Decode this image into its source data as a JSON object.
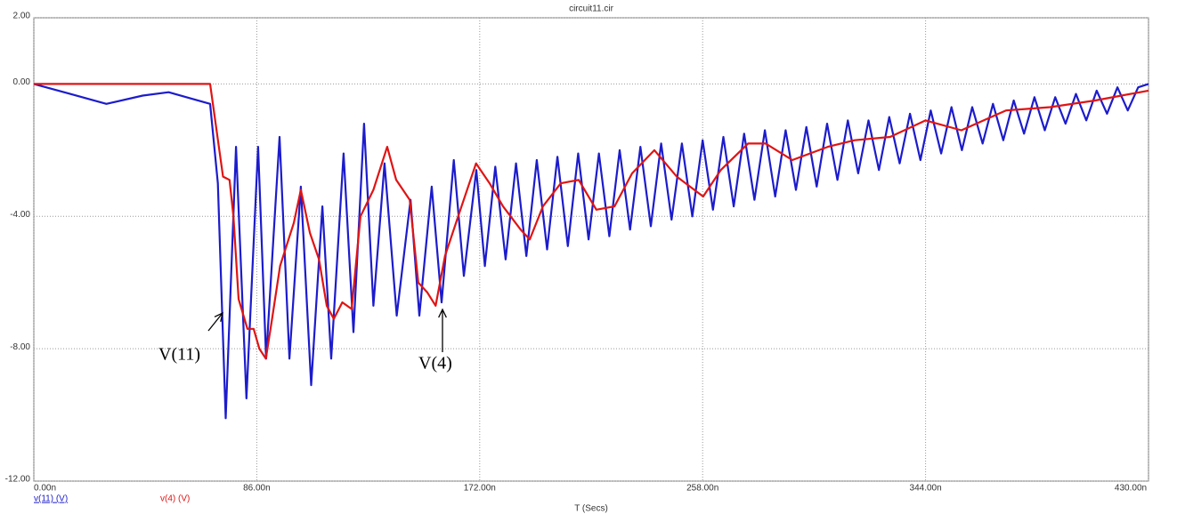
{
  "chart_data": {
    "type": "line",
    "title": "circuit11.cir",
    "x_label": "T (Secs)",
    "xlim": [
      0,
      430
    ],
    "ylim": [
      -12,
      2
    ],
    "xticks": [
      {
        "value": 0,
        "label": "0.00n"
      },
      {
        "value": 86,
        "label": "86.00n"
      },
      {
        "value": 172,
        "label": "172.00n"
      },
      {
        "value": 258,
        "label": "258.00n"
      },
      {
        "value": 344,
        "label": "344.00n"
      },
      {
        "value": 430,
        "label": "430.00n"
      }
    ],
    "yticks": [
      {
        "value": -12,
        "label": "-12.00"
      },
      {
        "value": -8,
        "label": "-8.00"
      },
      {
        "value": -4,
        "label": "-4.00"
      },
      {
        "value": 0,
        "label": "0.00"
      },
      {
        "value": 2,
        "label": "2.00"
      }
    ],
    "grid": true,
    "annotations": [
      {
        "text": "V(11)"
      },
      {
        "text": "V(4)"
      }
    ],
    "series": [
      {
        "name": "v(11) (V)",
        "color": "#1c1ccc",
        "x": [
          0,
          14,
          28,
          42,
          52,
          68,
          71,
          74,
          78,
          82,
          86.5,
          89.6,
          94.8,
          98.6,
          103,
          107,
          111.3,
          114.7,
          119.5,
          123.3,
          127.4,
          131,
          135.3,
          140,
          145.3,
          148.7,
          153.5,
          157.3,
          162,
          165.9,
          170.7,
          174,
          178,
          182,
          186,
          190,
          194,
          198,
          202,
          206,
          210,
          214,
          218,
          222,
          226,
          230,
          234,
          238,
          242,
          246,
          250,
          254,
          258,
          262,
          266,
          270,
          274,
          278,
          282,
          286,
          290,
          294,
          298,
          302,
          306,
          310,
          314,
          318,
          322,
          326,
          330,
          334,
          338,
          342,
          346,
          350,
          354,
          358,
          362,
          366,
          370,
          374,
          378,
          382,
          386,
          390,
          394,
          398,
          402,
          406,
          410,
          414,
          418,
          422,
          426,
          430
        ],
        "values": [
          0,
          -0.3,
          -0.6,
          -0.35,
          -0.25,
          -0.6,
          -3,
          -10.1,
          -1.9,
          -9.5,
          -1.9,
          -8.3,
          -1.6,
          -8.3,
          -3.1,
          -9.1,
          -3.7,
          -8.3,
          -2.1,
          -7.5,
          -1.2,
          -6.7,
          -2.4,
          -7.0,
          -3.5,
          -7.0,
          -3.1,
          -6.6,
          -2.3,
          -5.8,
          -2.6,
          -5.5,
          -2.5,
          -5.3,
          -2.4,
          -5.2,
          -2.3,
          -5.0,
          -2.2,
          -4.9,
          -2.1,
          -4.7,
          -2.1,
          -4.6,
          -2.0,
          -4.4,
          -1.9,
          -4.3,
          -1.8,
          -4.1,
          -1.8,
          -4.0,
          -1.7,
          -3.8,
          -1.6,
          -3.7,
          -1.5,
          -3.5,
          -1.4,
          -3.4,
          -1.4,
          -3.2,
          -1.3,
          -3.1,
          -1.2,
          -2.9,
          -1.1,
          -2.7,
          -1.1,
          -2.6,
          -1.0,
          -2.4,
          -0.9,
          -2.3,
          -0.8,
          -2.1,
          -0.7,
          -2.0,
          -0.7,
          -1.8,
          -0.6,
          -1.7,
          -0.5,
          -1.5,
          -0.4,
          -1.4,
          -0.4,
          -1.2,
          -0.3,
          -1.1,
          -0.2,
          -0.9,
          -0.1,
          -0.8,
          -0.1,
          0
        ]
      },
      {
        "name": "v(4) (V)",
        "color": "#e01414",
        "x": [
          0,
          68,
          73,
          75.5,
          77,
          79,
          82.4,
          84.8,
          87,
          89.5,
          91.7,
          95,
          100.3,
          103,
          106.5,
          110,
          113,
          115.7,
          119,
          122.6,
          126,
          131,
          136.3,
          139.8,
          145,
          148.3,
          151.8,
          155,
          158.6,
          163.7,
          170.6,
          175.8,
          181,
          187.8,
          191.3,
          196.4,
          203.3,
          210.2,
          217,
          224,
          230.8,
          239.4,
          248,
          258.2,
          265,
          275.5,
          282.3,
          292.6,
          306.3,
          316.6,
          330.3,
          344,
          357.8,
          375,
          392,
          409.4,
          430
        ],
        "values": [
          0,
          0,
          -2.8,
          -2.9,
          -4,
          -6.5,
          -7.4,
          -7.4,
          -8,
          -8.3,
          -7.2,
          -5.5,
          -4.2,
          -3.2,
          -4.5,
          -5.3,
          -6.7,
          -7.1,
          -6.6,
          -6.8,
          -4.0,
          -3.2,
          -1.9,
          -2.9,
          -3.5,
          -6.0,
          -6.3,
          -6.7,
          -5.2,
          -4.0,
          -2.4,
          -3.0,
          -3.7,
          -4.4,
          -4.7,
          -3.7,
          -3.0,
          -2.9,
          -3.8,
          -3.7,
          -2.7,
          -2.0,
          -2.8,
          -3.4,
          -2.6,
          -1.8,
          -1.8,
          -2.3,
          -1.9,
          -1.7,
          -1.6,
          -1.1,
          -1.4,
          -0.8,
          -0.7,
          -0.5,
          -0.2
        ]
      }
    ]
  }
}
